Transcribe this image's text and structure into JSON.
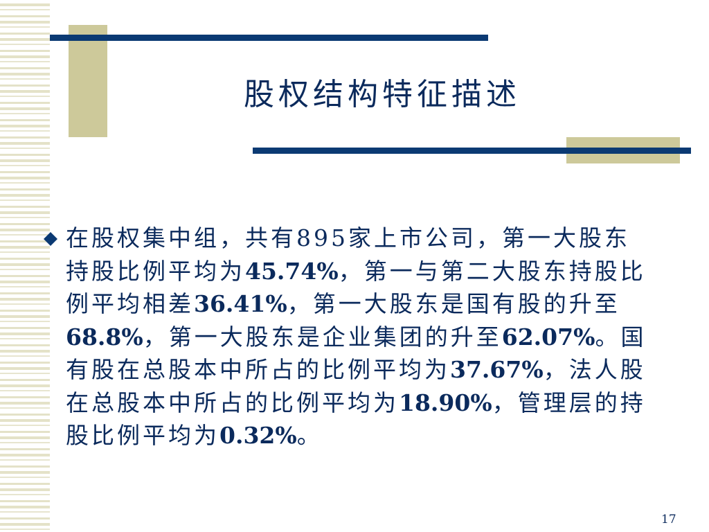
{
  "slide": {
    "title": "股权结构特征描述",
    "bullet_icon": "diamond-bullet-icon",
    "body_lines": [
      [
        {
          "text": "在股权集中组，共有",
          "bold": false
        },
        {
          "text": "895",
          "bold": false
        },
        {
          "text": "家上市公司，第一大股东",
          "bold": false
        }
      ],
      [
        {
          "text": "持股比例平均为",
          "bold": false
        },
        {
          "text": "45.74%",
          "bold": true
        },
        {
          "text": "，第一与第二大股东持股比",
          "bold": false
        }
      ],
      [
        {
          "text": "例平均相差",
          "bold": false
        },
        {
          "text": "36.41%",
          "bold": true
        },
        {
          "text": "，第一大股东是国有股的升至",
          "bold": false
        }
      ],
      [
        {
          "text": "68.8%",
          "bold": true
        },
        {
          "text": "，第一大股东是企业集团的升至",
          "bold": false
        },
        {
          "text": "62.07%",
          "bold": true
        },
        {
          "text": "。国",
          "bold": false
        }
      ],
      [
        {
          "text": "有股在总股本中所占的比例平均为",
          "bold": false
        },
        {
          "text": "37.67%",
          "bold": true
        },
        {
          "text": "，法人股",
          "bold": false
        }
      ],
      [
        {
          "text": "在总股本中所占的比例平均为",
          "bold": false
        },
        {
          "text": "18.90%",
          "bold": true
        },
        {
          "text": "，管理层的持",
          "bold": false
        }
      ],
      [
        {
          "text": "股比例平均为",
          "bold": false
        },
        {
          "text": "0.32%",
          "bold": true
        },
        {
          "text": "。",
          "bold": false
        }
      ]
    ],
    "page_number": "17"
  },
  "colors": {
    "navy": "#0b3a73",
    "tan": "#cdc99a",
    "text": "#0b2a5c"
  }
}
